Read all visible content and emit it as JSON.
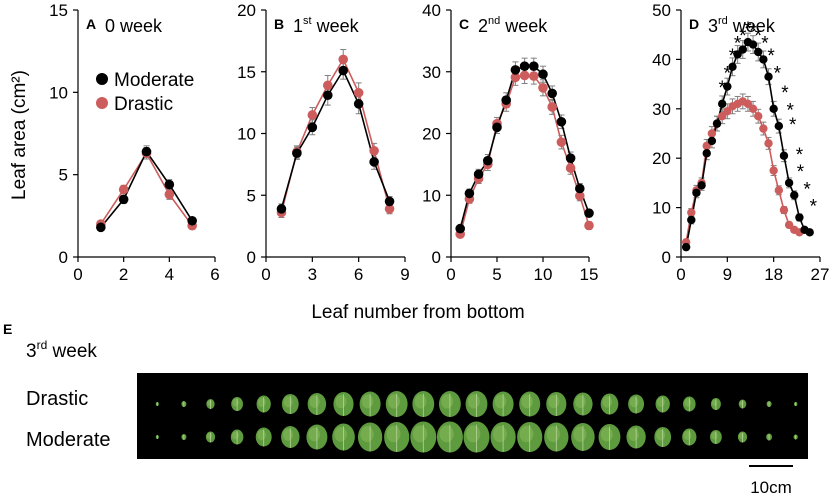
{
  "figure": {
    "ylabel": "Leaf area (cm²)",
    "xlabel": "Leaf number from bottom",
    "legend": [
      "Moderate",
      "Drastic"
    ],
    "colors": {
      "Moderate": "#000000",
      "Drastic": "#cd5c5c",
      "error_bar": "#7f7f7f"
    },
    "photo": {
      "panel_letter": "E",
      "title_main": "3",
      "title_sup": "rd",
      "title_rest": " week",
      "row_labels": [
        "Drastic",
        "Moderate"
      ],
      "scale_bar_label": "10cm"
    }
  },
  "chart_data": [
    {
      "type": "line",
      "panel": "A",
      "title": "0 week",
      "title_main": "0",
      "title_sup": "",
      "title_rest": " week",
      "xlim": [
        0,
        6
      ],
      "ylim": [
        0,
        15
      ],
      "xticks": [
        0,
        2,
        4,
        6
      ],
      "yticks": [
        0,
        5,
        10,
        15
      ],
      "series": [
        {
          "name": "Moderate",
          "x": [
            1,
            2,
            3,
            4,
            5
          ],
          "y": [
            1.8,
            3.5,
            6.4,
            4.4,
            2.2
          ],
          "err": [
            0.15,
            0.25,
            0.35,
            0.3,
            0.2
          ]
        },
        {
          "name": "Drastic",
          "x": [
            1,
            2,
            3,
            4,
            5
          ],
          "y": [
            2.0,
            4.1,
            6.3,
            3.8,
            1.9
          ],
          "err": [
            0.15,
            0.25,
            0.35,
            0.3,
            0.2
          ]
        }
      ],
      "significance": []
    },
    {
      "type": "line",
      "panel": "B",
      "title": "1st week",
      "title_main": "1",
      "title_sup": "st",
      "title_rest": " week",
      "xlim": [
        0,
        9
      ],
      "ylim": [
        0,
        20
      ],
      "xticks": [
        0,
        3,
        6,
        9
      ],
      "yticks": [
        0,
        5,
        10,
        15,
        20
      ],
      "series": [
        {
          "name": "Moderate",
          "x": [
            1,
            2,
            3,
            4,
            5,
            6,
            7,
            8
          ],
          "y": [
            3.9,
            8.4,
            10.5,
            13.1,
            15.1,
            12.4,
            7.7,
            4.5
          ],
          "err": [
            0.4,
            0.5,
            0.6,
            0.8,
            0.7,
            0.8,
            0.6,
            0.4
          ]
        },
        {
          "name": "Drastic",
          "x": [
            1,
            2,
            3,
            4,
            5,
            6,
            7,
            8
          ],
          "y": [
            3.6,
            8.5,
            11.5,
            13.9,
            16.0,
            13.3,
            8.6,
            3.9
          ],
          "err": [
            0.4,
            0.5,
            0.6,
            0.8,
            0.8,
            0.8,
            0.6,
            0.4
          ]
        }
      ],
      "significance": []
    },
    {
      "type": "line",
      "panel": "C",
      "title": "2nd week",
      "title_main": "2",
      "title_sup": "nd",
      "title_rest": " week",
      "xlim": [
        0,
        15
      ],
      "ylim": [
        0,
        40
      ],
      "xticks": [
        0,
        5,
        10,
        15
      ],
      "yticks": [
        0,
        10,
        20,
        30,
        40
      ],
      "series": [
        {
          "name": "Moderate",
          "x": [
            1,
            2,
            3,
            4,
            5,
            6,
            7,
            8,
            9,
            10,
            11,
            12,
            13,
            14,
            15
          ],
          "y": [
            4.6,
            10.3,
            13.4,
            15.6,
            21.0,
            25.4,
            30.3,
            30.9,
            30.9,
            29.6,
            26.5,
            21.9,
            16.0,
            11.1,
            7.1
          ],
          "err": [
            0.5,
            0.7,
            0.8,
            1.0,
            1.0,
            1.2,
            1.3,
            1.3,
            1.3,
            1.3,
            1.2,
            1.1,
            1.0,
            0.8,
            0.6
          ]
        },
        {
          "name": "Drastic",
          "x": [
            1,
            2,
            3,
            4,
            5,
            6,
            7,
            8,
            9,
            10,
            11,
            12,
            13,
            14,
            15
          ],
          "y": [
            3.7,
            9.4,
            12.7,
            15.0,
            21.6,
            24.8,
            29.1,
            29.4,
            29.3,
            27.4,
            24.3,
            18.6,
            14.4,
            9.9,
            5.1
          ],
          "err": [
            0.5,
            0.7,
            0.8,
            1.0,
            1.0,
            1.2,
            1.3,
            1.3,
            1.3,
            1.3,
            1.2,
            1.1,
            1.0,
            0.8,
            0.6
          ]
        }
      ],
      "significance": []
    },
    {
      "type": "line",
      "panel": "D",
      "title": "3rd week",
      "title_main": "3",
      "title_sup": "rd",
      "title_rest": " week",
      "xlim": [
        0,
        27
      ],
      "ylim": [
        0,
        50
      ],
      "xticks": [
        0,
        9,
        18,
        27
      ],
      "yticks": [
        0,
        10,
        20,
        30,
        40,
        50
      ],
      "series": [
        {
          "name": "Moderate",
          "x": [
            1,
            2,
            3,
            4,
            5,
            6,
            7,
            8,
            9,
            10,
            11,
            12,
            13,
            14,
            15,
            16,
            17,
            18,
            19,
            20,
            21,
            22,
            23,
            24,
            25
          ],
          "y": [
            2.0,
            7.5,
            13.0,
            14.5,
            21.0,
            23.5,
            27.0,
            31.0,
            34.5,
            38.5,
            41.0,
            42.0,
            43.5,
            43.0,
            41.5,
            40.0,
            36.5,
            30.0,
            26.5,
            20.5,
            15.0,
            12.5,
            8.0,
            5.5,
            5.0
          ],
          "err": [
            0.5,
            0.8,
            1.0,
            1.0,
            1.3,
            1.4,
            1.5,
            1.6,
            1.7,
            1.8,
            1.8,
            1.8,
            1.8,
            1.8,
            1.8,
            1.7,
            1.6,
            1.5,
            1.4,
            1.2,
            1.0,
            0.9,
            0.7,
            0.5,
            0.5
          ]
        },
        {
          "name": "Drastic",
          "x": [
            1,
            2,
            3,
            4,
            5,
            6,
            7,
            8,
            9,
            10,
            11,
            12,
            13,
            14,
            15,
            16,
            17,
            18,
            19,
            20,
            21,
            22,
            23
          ],
          "y": [
            3.0,
            9.0,
            13.5,
            15.0,
            22.5,
            25.0,
            27.0,
            28.5,
            29.5,
            30.5,
            31.0,
            31.5,
            31.0,
            30.0,
            28.5,
            26.0,
            23.0,
            17.5,
            13.5,
            9.5,
            6.5,
            5.5,
            5.0
          ],
          "err": [
            0.5,
            0.8,
            1.0,
            1.0,
            1.3,
            1.4,
            1.5,
            1.5,
            1.5,
            1.5,
            1.5,
            1.5,
            1.5,
            1.5,
            1.4,
            1.3,
            1.2,
            1.0,
            0.9,
            0.7,
            0.5,
            0.5,
            0.5
          ]
        }
      ],
      "significance": [
        {
          "label": "*",
          "x": 8,
          "y": 35
        },
        {
          "label": "*",
          "x": 9,
          "y": 38
        },
        {
          "label": "*",
          "x": 10,
          "y": 41.5
        },
        {
          "label": "*",
          "x": 11,
          "y": 44
        },
        {
          "label": "*",
          "x": 12,
          "y": 45.5
        },
        {
          "label": "*",
          "x": 13,
          "y": 47
        },
        {
          "label": "*",
          "x": 14,
          "y": 46.5
        },
        {
          "label": "*",
          "x": 15,
          "y": 45.5
        },
        {
          "label": "*",
          "x": 16.3,
          "y": 44
        },
        {
          "label": "*",
          "x": 17.5,
          "y": 41.5
        },
        {
          "label": "*",
          "x": 18.7,
          "y": 38
        },
        {
          "label": "*",
          "x": 20.2,
          "y": 34
        },
        {
          "label": "*",
          "x": 21.2,
          "y": 30.5
        },
        {
          "label": "*",
          "x": 21.7,
          "y": 27.5
        },
        {
          "label": "*",
          "x": 23.0,
          "y": 21.5
        },
        {
          "label": "*",
          "x": 23.2,
          "y": 18.0
        },
        {
          "label": "*",
          "x": 24.5,
          "y": 14.5
        },
        {
          "label": "*",
          "x": 25.7,
          "y": 11.0
        }
      ]
    }
  ]
}
